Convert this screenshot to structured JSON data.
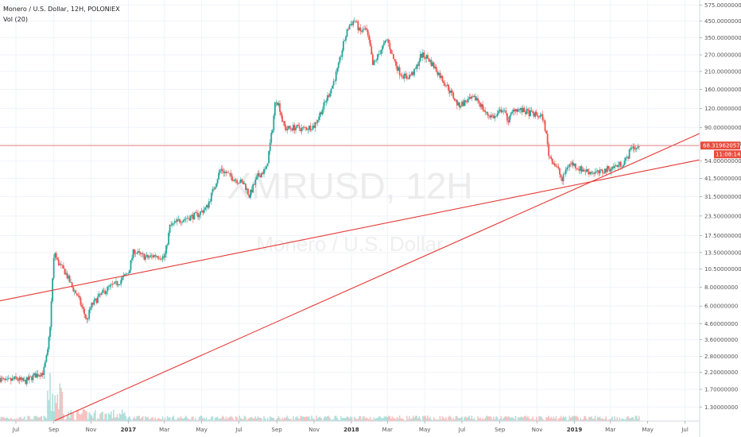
{
  "header": {
    "title": "Monero / U.S. Dollar, 12H, POLONIEX",
    "indicator": "Vol (20)"
  },
  "watermark": {
    "symbol": "XMRUSD, 12H",
    "name": "Monero / U.S. Dollar"
  },
  "price_badge": {
    "value": "68.31962057",
    "countdown": "11:08:14",
    "color": "#e74c3c"
  },
  "colors": {
    "up": "#26a69a",
    "down": "#ef5350",
    "trendline": "#e53935",
    "grid": "#f0f3fa",
    "axis_text": "#555555"
  },
  "chart_data": {
    "type": "line",
    "title": "Monero / U.S. Dollar, 12H, POLONIEX",
    "log_scale": true,
    "y_ticks": [
      1.3,
      1.7,
      2.2,
      2.8,
      3.6,
      4.6,
      6.0,
      8.0,
      10.5,
      13.5,
      17.5,
      23.5,
      31.5,
      41.5,
      54.0,
      70.0,
      90.0,
      120.0,
      160.0,
      210.0,
      270.0,
      350.0,
      450.0,
      575.0
    ],
    "y_tick_labels": [
      "1.30000000",
      "1.70000000",
      "2.20000000",
      "2.80000000",
      "3.60000000",
      "4.60000000",
      "6.00000000",
      "8.00000000",
      "10.50000000",
      "13.50000000",
      "17.50000000",
      "23.50000000",
      "31.50000000",
      "41.50000000",
      "54.00000000",
      "70.00000000",
      "90.00000000",
      "120.00000000",
      "160.00000000",
      "210.00000000",
      "270.00000000",
      "350.00000000",
      "450.00000000",
      "575.00000000"
    ],
    "x_ticks": [
      {
        "label": "Jul",
        "date": "2016-07-01",
        "bold": false
      },
      {
        "label": "Sep",
        "date": "2016-09-01",
        "bold": false
      },
      {
        "label": "Nov",
        "date": "2016-11-01",
        "bold": false
      },
      {
        "label": "2017",
        "date": "2017-01-01",
        "bold": true
      },
      {
        "label": "Mar",
        "date": "2017-03-01",
        "bold": false
      },
      {
        "label": "May",
        "date": "2017-05-01",
        "bold": false
      },
      {
        "label": "Jul",
        "date": "2017-07-01",
        "bold": false
      },
      {
        "label": "Sep",
        "date": "2017-09-01",
        "bold": false
      },
      {
        "label": "Nov",
        "date": "2017-11-01",
        "bold": false
      },
      {
        "label": "2018",
        "date": "2018-01-01",
        "bold": true
      },
      {
        "label": "Mar",
        "date": "2018-03-01",
        "bold": false
      },
      {
        "label": "May",
        "date": "2018-05-01",
        "bold": false
      },
      {
        "label": "Jul",
        "date": "2018-07-01",
        "bold": false
      },
      {
        "label": "Sep",
        "date": "2018-09-01",
        "bold": false
      },
      {
        "label": "Nov",
        "date": "2018-11-01",
        "bold": false
      },
      {
        "label": "2019",
        "date": "2019-01-01",
        "bold": true
      },
      {
        "label": "Mar",
        "date": "2019-03-01",
        "bold": false
      },
      {
        "label": "May",
        "date": "2019-05-01",
        "bold": false
      },
      {
        "label": "Jul",
        "date": "2019-07-01",
        "bold": false
      }
    ],
    "x_range": [
      "2016-06-05",
      "2019-07-25"
    ],
    "y_range": [
      1.05,
      620
    ],
    "last_price": 68.31962057,
    "series": [
      {
        "type": "price",
        "points": [
          [
            "2016-06-05",
            2.0
          ],
          [
            "2016-06-15",
            1.9
          ],
          [
            "2016-07-01",
            2.0
          ],
          [
            "2016-07-15",
            1.9
          ],
          [
            "2016-08-01",
            2.1
          ],
          [
            "2016-08-15",
            2.2
          ],
          [
            "2016-08-22",
            3.0
          ],
          [
            "2016-08-26",
            4.5
          ],
          [
            "2016-08-30",
            9.0
          ],
          [
            "2016-09-02",
            14.0
          ],
          [
            "2016-09-06",
            12.0
          ],
          [
            "2016-09-12",
            11.0
          ],
          [
            "2016-09-20",
            10.0
          ],
          [
            "2016-10-01",
            8.0
          ],
          [
            "2016-10-10",
            7.0
          ],
          [
            "2016-10-20",
            5.5
          ],
          [
            "2016-10-25",
            4.8
          ],
          [
            "2016-11-01",
            6.0
          ],
          [
            "2016-11-15",
            7.0
          ],
          [
            "2016-12-01",
            8.0
          ],
          [
            "2016-12-15",
            8.5
          ],
          [
            "2017-01-01",
            10.0
          ],
          [
            "2017-01-10",
            14.0
          ],
          [
            "2017-01-20",
            13.0
          ],
          [
            "2017-02-01",
            12.5
          ],
          [
            "2017-02-15",
            13.0
          ],
          [
            "2017-03-01",
            12.5
          ],
          [
            "2017-03-05",
            15.0
          ],
          [
            "2017-03-10",
            20.0
          ],
          [
            "2017-03-25",
            22.0
          ],
          [
            "2017-04-10",
            23.0
          ],
          [
            "2017-04-25",
            24.0
          ],
          [
            "2017-05-10",
            27.0
          ],
          [
            "2017-05-20",
            35.0
          ],
          [
            "2017-06-01",
            48.0
          ],
          [
            "2017-06-10",
            45.0
          ],
          [
            "2017-06-20",
            42.0
          ],
          [
            "2017-07-01",
            40.0
          ],
          [
            "2017-07-10",
            38.0
          ],
          [
            "2017-07-18",
            32.0
          ],
          [
            "2017-08-01",
            43.0
          ],
          [
            "2017-08-15",
            48.0
          ],
          [
            "2017-08-25",
            90.0
          ],
          [
            "2017-08-30",
            140.0
          ],
          [
            "2017-09-05",
            125.0
          ],
          [
            "2017-09-10",
            100.0
          ],
          [
            "2017-09-15",
            88.0
          ],
          [
            "2017-10-01",
            90.0
          ],
          [
            "2017-10-15",
            88.0
          ],
          [
            "2017-11-01",
            92.0
          ],
          [
            "2017-11-15",
            120.0
          ],
          [
            "2017-12-01",
            170.0
          ],
          [
            "2017-12-10",
            220.0
          ],
          [
            "2017-12-20",
            330.0
          ],
          [
            "2017-12-28",
            420.0
          ],
          [
            "2018-01-07",
            460.0
          ],
          [
            "2018-01-15",
            380.0
          ],
          [
            "2018-01-25",
            400.0
          ],
          [
            "2018-02-01",
            300.0
          ],
          [
            "2018-02-05",
            230.0
          ],
          [
            "2018-02-10",
            250.0
          ],
          [
            "2018-02-20",
            300.0
          ],
          [
            "2018-03-01",
            340.0
          ],
          [
            "2018-03-10",
            260.0
          ],
          [
            "2018-03-20",
            210.0
          ],
          [
            "2018-04-01",
            190.0
          ],
          [
            "2018-04-15",
            210.0
          ],
          [
            "2018-04-25",
            270.0
          ],
          [
            "2018-05-05",
            260.0
          ],
          [
            "2018-05-15",
            230.0
          ],
          [
            "2018-05-25",
            200.0
          ],
          [
            "2018-06-10",
            160.0
          ],
          [
            "2018-06-25",
            125.0
          ],
          [
            "2018-07-10",
            135.0
          ],
          [
            "2018-07-25",
            140.0
          ],
          [
            "2018-08-10",
            110.0
          ],
          [
            "2018-08-25",
            105.0
          ],
          [
            "2018-09-05",
            120.0
          ],
          [
            "2018-09-15",
            100.0
          ],
          [
            "2018-09-25",
            120.0
          ],
          [
            "2018-10-10",
            115.0
          ],
          [
            "2018-10-25",
            110.0
          ],
          [
            "2018-11-10",
            105.0
          ],
          [
            "2018-11-15",
            85.0
          ],
          [
            "2018-11-20",
            60.0
          ],
          [
            "2018-11-25",
            55.0
          ],
          [
            "2018-12-05",
            48.0
          ],
          [
            "2018-12-12",
            40.0
          ],
          [
            "2018-12-20",
            50.0
          ],
          [
            "2018-12-28",
            52.0
          ],
          [
            "2019-01-10",
            48.0
          ],
          [
            "2019-01-25",
            46.0
          ],
          [
            "2019-02-10",
            45.0
          ],
          [
            "2019-02-25",
            48.0
          ],
          [
            "2019-03-10",
            50.0
          ],
          [
            "2019-03-20",
            52.0
          ],
          [
            "2019-03-28",
            56.0
          ],
          [
            "2019-04-05",
            68.0
          ],
          [
            "2019-04-12",
            65.0
          ],
          [
            "2019-04-18",
            68.3
          ]
        ]
      }
    ],
    "trendlines": [
      {
        "name": "",
        "from": [
          "2016-06-05",
          6.5
        ],
        "to": [
          "2019-07-25",
          55.0
        ]
      },
      {
        "name": "",
        "from": [
          "2016-09-01",
          1.05
        ],
        "to": [
          "2019-07-25",
          82.0
        ]
      }
    ],
    "price_line": 68.31962057
  }
}
